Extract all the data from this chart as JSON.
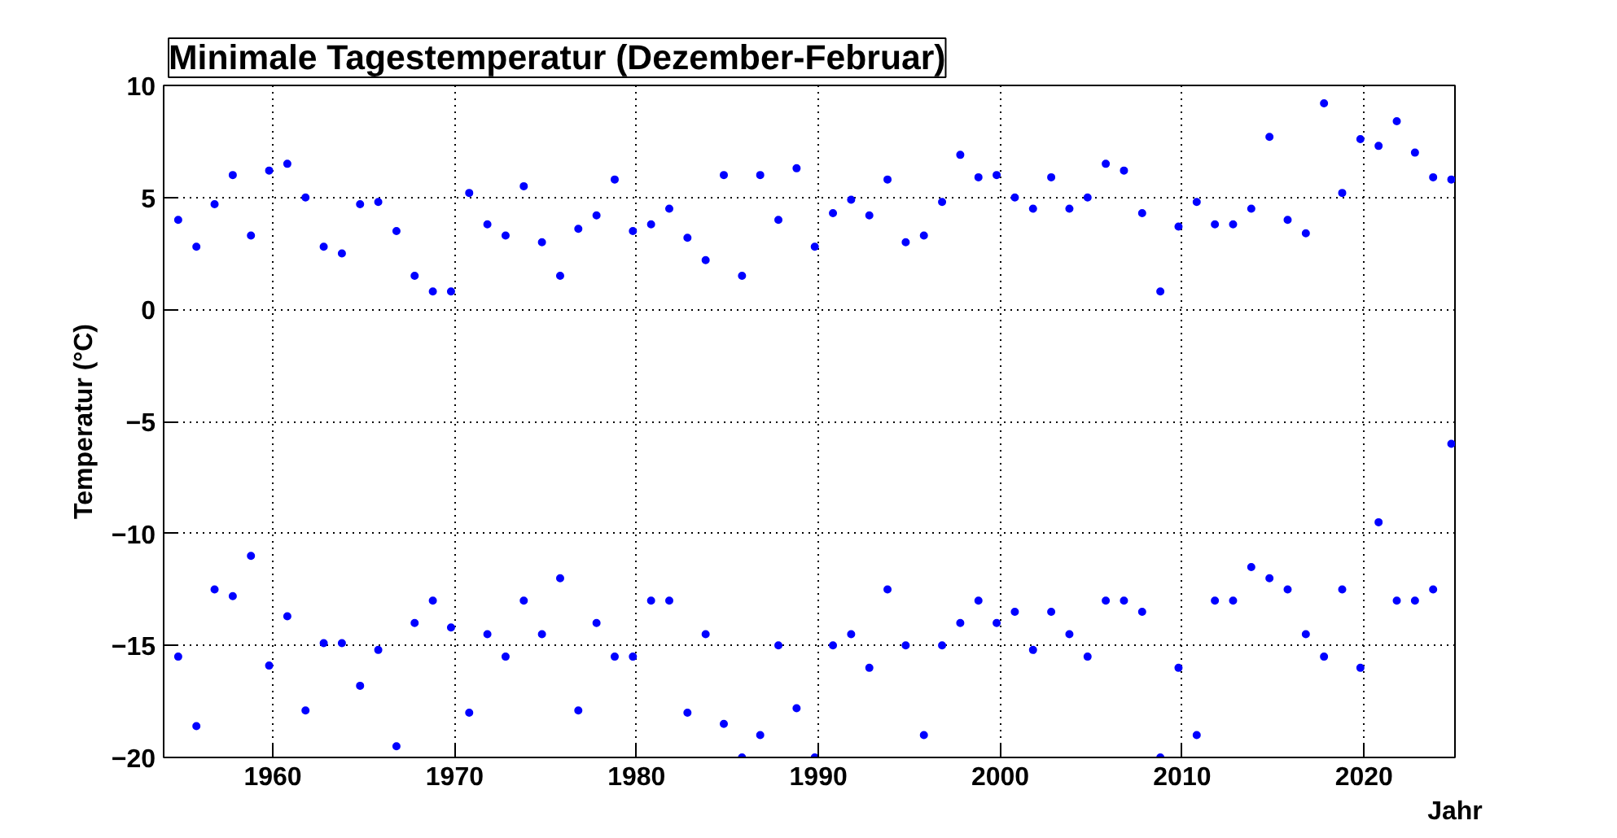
{
  "chart_data": {
    "type": "scatter",
    "title": "Minimale Tagestemperatur (Dezember-Februar)",
    "xlabel": "Jahr",
    "ylabel": "Temperatur (°C)",
    "xlim": [
      1954,
      2025
    ],
    "ylim": [
      -20,
      10
    ],
    "xticks": [
      1960,
      1970,
      1980,
      1990,
      2000,
      2010,
      2020
    ],
    "yticks": [
      -20,
      -15,
      -10,
      -5,
      0,
      5,
      10
    ],
    "grid": true,
    "marker": "circle",
    "series": [
      {
        "color": "#0000ff",
        "x": [
          1954.8,
          1955.8,
          1956.8,
          1957.8,
          1958.8,
          1959.8,
          1960.8,
          1961.8,
          1962.8,
          1963.8,
          1964.8,
          1965.8,
          1966.8,
          1967.8,
          1968.8,
          1969.8,
          1970.8,
          1971.8,
          1972.8,
          1973.8,
          1974.8,
          1975.8,
          1976.8,
          1977.8,
          1978.8,
          1979.8,
          1980.8,
          1981.8,
          1982.8,
          1983.8,
          1984.8,
          1985.8,
          1986.8,
          1987.8,
          1988.8,
          1989.8,
          1990.8,
          1991.8,
          1992.8,
          1993.8,
          1994.8,
          1995.8,
          1996.8,
          1997.8,
          1998.8,
          1999.8,
          2000.8,
          2001.8,
          2002.8,
          2003.8,
          2004.8,
          2005.8,
          2006.8,
          2007.8,
          2008.8,
          2009.8,
          2010.8,
          2011.8,
          2012.8,
          2013.8,
          2014.8,
          2015.8,
          2016.8,
          2017.8,
          2018.8,
          2019.8,
          2020.8,
          2021.8,
          2022.8,
          2023.8,
          2024.8,
          1954.8,
          1955.8,
          1956.8,
          1957.8,
          1958.8,
          1959.8,
          1960.8,
          1961.8,
          1962.8,
          1963.8,
          1964.8,
          1965.8,
          1966.8,
          1967.8,
          1968.8,
          1969.8,
          1970.8,
          1971.8,
          1972.8,
          1973.8,
          1974.8,
          1975.8,
          1976.8,
          1977.8,
          1978.8,
          1979.8,
          1980.8,
          1981.8,
          1982.8,
          1983.8,
          1984.8,
          1985.8,
          1986.8,
          1987.8,
          1988.8,
          1989.8,
          1990.8,
          1991.8,
          1992.8,
          1993.8,
          1994.8,
          1995.8,
          1996.8,
          1997.8,
          1998.8,
          1999.8,
          2000.8,
          2001.8,
          2002.8,
          2003.8,
          2004.8,
          2005.8,
          2006.8,
          2007.8,
          2008.8,
          2009.8,
          2010.8,
          2011.8,
          2012.8,
          2013.8,
          2014.8,
          2015.8,
          2016.8,
          2017.8,
          2018.8,
          2019.8,
          2020.8,
          2021.8,
          2022.8,
          2023.8,
          2024.8
        ],
        "values": [
          4,
          2.8,
          4.7,
          6,
          3.3,
          6.2,
          6.5,
          5,
          2.8,
          2.5,
          4.7,
          4.8,
          3.5,
          1.5,
          0.8,
          0.8,
          5.2,
          3.8,
          3.3,
          5.5,
          3,
          1.5,
          3.6,
          4.2,
          5.8,
          3.5,
          3.8,
          4.5,
          3.2,
          2.2,
          6,
          1.5,
          6,
          4,
          6.3,
          2.8,
          4.3,
          4.9,
          4.2,
          5.8,
          3,
          3.3,
          4.8,
          6.9,
          5.9,
          6,
          5,
          4.5,
          5.9,
          4.5,
          5,
          6.5,
          6.2,
          4.3,
          0.8,
          3.7,
          4.8,
          3.8,
          3.8,
          4.5,
          7.7,
          4,
          3.4,
          9.2,
          5.2,
          7.6,
          7.3,
          8.4,
          7,
          5.9,
          5.8,
          -15.5,
          -18.6,
          -12.5,
          -12.8,
          -11,
          -15.9,
          -13.7,
          -17.9,
          -14.9,
          -14.9,
          -16.8,
          -15.2,
          -19.5,
          -14,
          -13,
          -14.2,
          -18,
          -14.5,
          -15.5,
          -13,
          -14.5,
          -12,
          -17.9,
          -14,
          -15.5,
          -15.5,
          -13,
          -13,
          -18,
          -14.5,
          -18.5,
          -20,
          -19,
          -15,
          -17.8,
          -20,
          -15,
          -14.5,
          -16,
          -12.5,
          -15,
          -19,
          -15,
          -14,
          -13,
          -14,
          -13.5,
          -15.2,
          -13.5,
          -14.5,
          -15.5,
          -13,
          -13,
          -13.5,
          -20,
          -16,
          -19,
          -13,
          -13,
          -11.5,
          -12,
          -12.5,
          -14.5,
          -15.5,
          -12.5,
          -16,
          -9.5,
          -13,
          -13,
          -12.5,
          -6
        ]
      }
    ]
  }
}
